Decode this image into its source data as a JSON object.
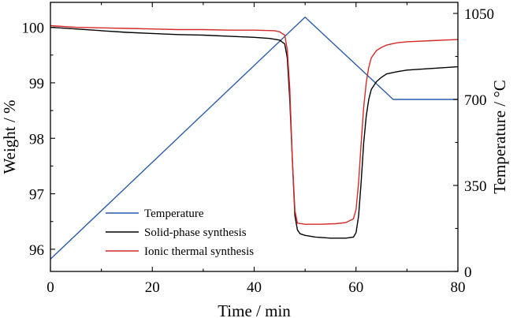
{
  "chart_data": {
    "type": "line",
    "xlabel": "Time / min",
    "ylabel_left": "Weight / %",
    "ylabel_right": "Temperature / °C",
    "xlim": [
      0,
      80
    ],
    "ylim_left": [
      95.6,
      100.45
    ],
    "ylim_right": [
      0,
      1095
    ],
    "x_ticks": [
      "0",
      "20",
      "40",
      "60",
      "80"
    ],
    "y_left_ticks": [
      "96",
      "97",
      "98",
      "99",
      "100"
    ],
    "y_right_ticks": [
      "0",
      "350",
      "700",
      "1050"
    ],
    "grid": false,
    "legend": {
      "position": "bottom-left",
      "items": [
        "Temperature",
        "Solid-phase synthesis",
        "Ionic thermal synthesis"
      ]
    },
    "series": [
      {
        "name": "Temperature",
        "axis": "right",
        "color": "#2a5ca8",
        "x": [
          0,
          50,
          67.3,
          80
        ],
        "y": [
          50,
          1035,
          700,
          700
        ]
      },
      {
        "name": "Solid-phase synthesis",
        "axis": "left",
        "color": "#000000",
        "x": [
          0,
          5,
          10,
          15,
          20,
          25,
          30,
          35,
          40,
          43,
          45,
          46,
          46.5,
          47,
          47.5,
          48,
          48.5,
          49,
          50,
          52,
          55,
          58,
          59.5,
          60,
          60.5,
          61,
          61.5,
          62,
          62.5,
          63,
          64,
          65,
          66,
          68,
          70,
          75,
          80
        ],
        "y": [
          100.0,
          99.97,
          99.94,
          99.91,
          99.89,
          99.87,
          99.86,
          99.84,
          99.82,
          99.8,
          99.77,
          99.7,
          99.45,
          98.7,
          97.6,
          96.6,
          96.35,
          96.28,
          96.25,
          96.22,
          96.2,
          96.2,
          96.22,
          96.3,
          96.6,
          97.2,
          97.9,
          98.4,
          98.7,
          98.88,
          99.02,
          99.1,
          99.16,
          99.2,
          99.23,
          99.26,
          99.29
        ]
      },
      {
        "name": "Ionic thermal synthesis",
        "axis": "left",
        "color": "#d42a2a",
        "x": [
          0,
          5,
          10,
          15,
          20,
          25,
          30,
          35,
          40,
          44,
          45,
          46,
          46.5,
          47,
          47.5,
          48,
          48.5,
          50,
          53,
          56,
          58,
          59.5,
          60,
          60.5,
          61,
          61.5,
          62,
          62.5,
          63,
          64,
          65,
          66,
          68,
          70,
          75,
          80
        ],
        "y": [
          100.03,
          100.0,
          99.99,
          99.98,
          99.97,
          99.96,
          99.96,
          99.95,
          99.95,
          99.94,
          99.92,
          99.86,
          99.6,
          98.9,
          97.6,
          96.7,
          96.47,
          96.45,
          96.45,
          96.46,
          96.48,
          96.55,
          96.72,
          97.2,
          97.9,
          98.55,
          99.0,
          99.28,
          99.45,
          99.58,
          99.64,
          99.68,
          99.72,
          99.74,
          99.76,
          99.78
        ]
      }
    ]
  }
}
